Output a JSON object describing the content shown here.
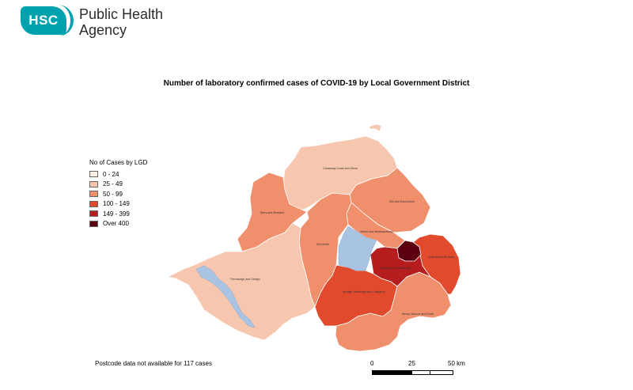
{
  "header": {
    "logo_mark": "HSC",
    "org_line1": "Public Health",
    "org_line2": "Agency"
  },
  "map": {
    "title": "Number of laboratory confirmed cases of COVID-19 by Local Government District",
    "legend_title": "No of Cases by LGD",
    "legend": [
      {
        "label": "0 - 24",
        "color": "#fdeee6"
      },
      {
        "label": "25 - 49",
        "color": "#f7c6ae"
      },
      {
        "label": "50 - 99",
        "color": "#f08f6c"
      },
      {
        "label": "100 - 149",
        "color": "#e24a2e"
      },
      {
        "label": "149 - 399",
        "color": "#b51d1f"
      },
      {
        "label": "Over 400",
        "color": "#5c0010"
      }
    ],
    "water_color": "#a9c4e3",
    "regions": [
      {
        "name": "Causeway Coast and Glens",
        "label": "Causeway Coast and Glens",
        "band": "25 - 49"
      },
      {
        "name": "Derry and Strabane",
        "label": "Derry and Strabane",
        "band": "50 - 99"
      },
      {
        "name": "Mid and East Antrim",
        "label": "Mid and East Antrim",
        "band": "50 - 99"
      },
      {
        "name": "Antrim and Newtownabbey",
        "label": "Antrim and Newtownabbey",
        "band": "50 - 99"
      },
      {
        "name": "Mid Ulster",
        "label": "Mid Ulster",
        "band": "50 - 99"
      },
      {
        "name": "Fermanagh and Omagh",
        "label": "Fermanagh and Omagh",
        "band": "25 - 49"
      },
      {
        "name": "Armagh, Banbridge and Craigavon",
        "label": "Armagh, Banbridge and Craigavon",
        "band": "100 - 149"
      },
      {
        "name": "Lisburn and Castlereagh",
        "label": "Lisburn and Castlereagh",
        "band": "149 - 399"
      },
      {
        "name": "Belfast",
        "label": "",
        "band": "Over 400"
      },
      {
        "name": "Ards and North Down",
        "label": "Ards and North Down",
        "band": "100 - 149"
      },
      {
        "name": "Newry, Mourne and Down",
        "label": "Newry, Mourne and Down",
        "band": "50 - 99"
      }
    ],
    "footnote": "Postcode data not available for 117 cases",
    "scale": {
      "labels": [
        "0",
        "25",
        "50 km"
      ]
    }
  }
}
